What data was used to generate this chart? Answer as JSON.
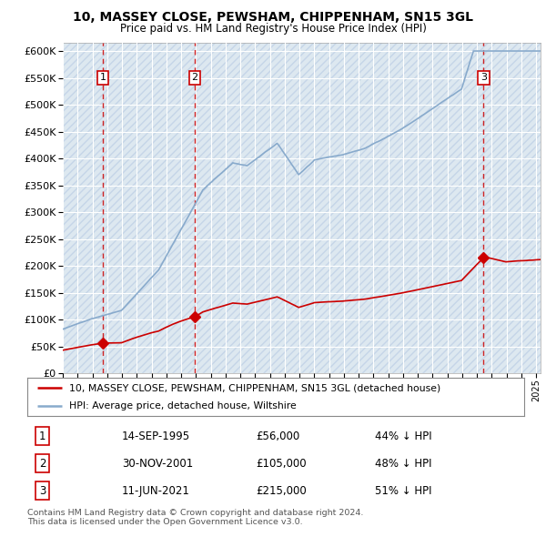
{
  "title": "10, MASSEY CLOSE, PEWSHAM, CHIPPENHAM, SN15 3GL",
  "subtitle": "Price paid vs. HM Land Registry's House Price Index (HPI)",
  "yticks": [
    0,
    50000,
    100000,
    150000,
    200000,
    250000,
    300000,
    350000,
    400000,
    450000,
    500000,
    550000,
    600000
  ],
  "ylim": [
    0,
    615000
  ],
  "xlim_start": 1993.0,
  "xlim_end": 2025.3,
  "transactions": [
    {
      "date_decimal": 1995.71,
      "price": 56000,
      "label": "1"
    },
    {
      "date_decimal": 2001.92,
      "price": 105000,
      "label": "2"
    },
    {
      "date_decimal": 2021.44,
      "price": 215000,
      "label": "3"
    }
  ],
  "transaction_color": "#cc0000",
  "hpi_color": "#88aacc",
  "legend_property_label": "10, MASSEY CLOSE, PEWSHAM, CHIPPENHAM, SN15 3GL (detached house)",
  "legend_hpi_label": "HPI: Average price, detached house, Wiltshire",
  "table_rows": [
    {
      "num": "1",
      "date": "14-SEP-1995",
      "price": "£56,000",
      "hpi": "44% ↓ HPI"
    },
    {
      "num": "2",
      "date": "30-NOV-2001",
      "price": "£105,000",
      "hpi": "48% ↓ HPI"
    },
    {
      "num": "3",
      "date": "11-JUN-2021",
      "price": "£215,000",
      "hpi": "51% ↓ HPI"
    }
  ],
  "footnote": "Contains HM Land Registry data © Crown copyright and database right 2024.\nThis data is licensed under the Open Government Licence v3.0.",
  "bg_color": "#ffffff",
  "plot_bg_color": "#dde8f0",
  "hatch_color": "#c5d5e8",
  "grid_color": "#ffffff",
  "dashed_line_color": "#cc0000",
  "label_box_color": "#cc0000"
}
